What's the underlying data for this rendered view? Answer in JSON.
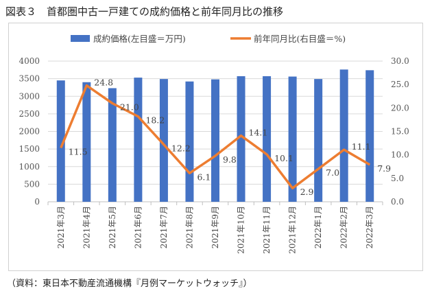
{
  "title": "図表３　首都圏中古一戸建ての成約価格と前年同月比の推移",
  "source": "（資料：東日本不動産流通機構『月例マーケットウォッチ』）",
  "chart_data": {
    "type": "bar+line",
    "categories": [
      "2021年3月",
      "2021年4月",
      "2021年5月",
      "2021年6月",
      "2021年7月",
      "2021年8月",
      "2021年9月",
      "2021年10月",
      "2021年11月",
      "2021年12月",
      "2022年1月",
      "2022年2月",
      "2022年3月"
    ],
    "series": [
      {
        "name": "成約価格(左目盛＝万円)",
        "type": "bar",
        "axis": "left",
        "color": "#4472c4",
        "values": [
          3450,
          3400,
          3230,
          3530,
          3490,
          3420,
          3480,
          3570,
          3570,
          3560,
          3490,
          3760,
          3740
        ]
      },
      {
        "name": "前年同月比(右目盛＝%)",
        "type": "line",
        "axis": "right",
        "color": "#ed7d31",
        "values": [
          11.5,
          24.8,
          21.0,
          18.2,
          12.2,
          6.1,
          9.8,
          14.1,
          10.1,
          2.9,
          7.0,
          11.1,
          7.9
        ],
        "labels": [
          "11.5",
          "24.8",
          "21.0",
          "18.2",
          "12.2",
          "6.1",
          "9.8",
          "14.1",
          "10.1",
          "2.9",
          "7.0",
          "11.1",
          "7.9"
        ]
      }
    ],
    "left_axis": {
      "range": [
        0,
        4000
      ],
      "ticks": [
        "0",
        "500",
        "1000",
        "1500",
        "2000",
        "2500",
        "3000",
        "3500",
        "4000"
      ]
    },
    "right_axis": {
      "range": [
        0,
        30
      ],
      "ticks": [
        "0.0",
        "5.0",
        "10.0",
        "15.0",
        "20.0",
        "25.0",
        "30.0"
      ]
    },
    "legend": "top",
    "grid": true
  }
}
